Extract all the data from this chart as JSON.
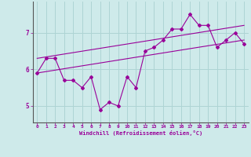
{
  "xlabel": "Windchill (Refroidissement éolien,°C)",
  "background_color": "#ceeaea",
  "grid_color": "#aed4d4",
  "line_color": "#990099",
  "x_values": [
    0,
    1,
    2,
    3,
    4,
    5,
    6,
    7,
    8,
    9,
    10,
    11,
    12,
    13,
    14,
    15,
    16,
    17,
    18,
    19,
    20,
    21,
    22,
    23
  ],
  "series1": [
    5.9,
    6.3,
    6.3,
    5.7,
    5.7,
    5.5,
    5.8,
    4.9,
    5.1,
    5.0,
    5.8,
    5.5,
    6.5,
    6.6,
    6.8,
    7.1,
    7.1,
    7.5,
    7.2,
    7.2,
    6.6,
    6.8,
    7.0,
    6.7
  ],
  "series2_x": [
    0,
    23
  ],
  "series2_y": [
    5.9,
    6.8
  ],
  "series3_x": [
    0,
    23
  ],
  "series3_y": [
    6.3,
    7.2
  ],
  "ylim": [
    4.55,
    7.85
  ],
  "xlim": [
    -0.5,
    23.5
  ],
  "yticks": [
    5,
    6,
    7
  ],
  "xticks": [
    0,
    1,
    2,
    3,
    4,
    5,
    6,
    7,
    8,
    9,
    10,
    11,
    12,
    13,
    14,
    15,
    16,
    17,
    18,
    19,
    20,
    21,
    22,
    23
  ]
}
